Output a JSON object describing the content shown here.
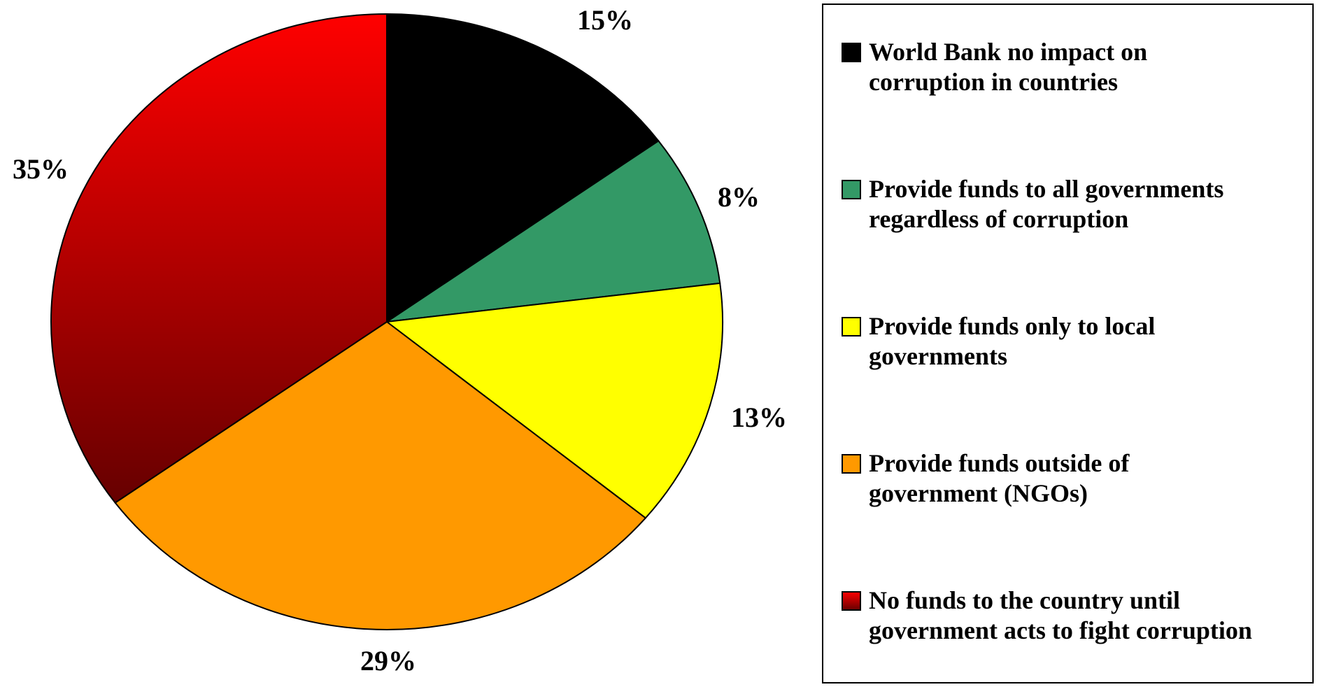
{
  "chart_data": {
    "type": "pie",
    "title": "",
    "series": [
      {
        "values": [
          15,
          8,
          13,
          29,
          35
        ],
        "labels": [
          "15%",
          "8%",
          "13%",
          "29%",
          "35%"
        ]
      }
    ],
    "categories": [
      [
        "World Bank no impact on",
        "corruption in countries"
      ],
      [
        "Provide funds to all governments",
        "regardless of corruption"
      ],
      [
        "Provide funds only to local",
        "governments"
      ],
      [
        "Provide funds outside of",
        "government (NGOs)"
      ],
      [
        "No funds to the country until",
        "government acts to fight corruption"
      ]
    ],
    "colors": [
      "#000000",
      "#339966",
      "#ffff00",
      "#ff9900",
      "#ff0000"
    ],
    "gradient_last_slice": {
      "top": "#ff0000",
      "bottom": "#660000"
    },
    "start_angle_deg": 0,
    "direction": "clockwise",
    "legend_position": "right"
  }
}
